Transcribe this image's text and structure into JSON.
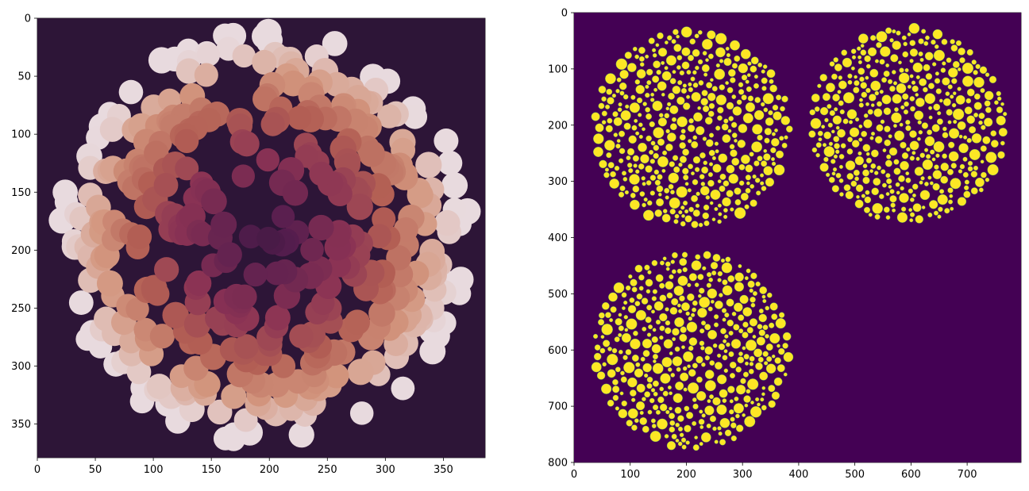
{
  "chart_data": [
    {
      "type": "heatmap",
      "title": "",
      "xlabel": "",
      "ylabel": "",
      "xlim": [
        0,
        386
      ],
      "ylim": [
        379,
        0
      ],
      "grid": false,
      "xticks": [
        0,
        50,
        100,
        150,
        200,
        250,
        300,
        350
      ],
      "yticks": [
        0,
        50,
        100,
        150,
        200,
        250,
        300,
        350
      ],
      "colormap": "rocket (dark center, light rim)",
      "background_color": "#2d1537",
      "content": "single circular cluster of overlapping discs",
      "cluster": {
        "center": [
          195,
          188
        ],
        "radius": 186
      }
    },
    {
      "type": "heatmap",
      "title": "",
      "xlabel": "",
      "ylabel": "",
      "xlim": [
        0,
        796
      ],
      "ylim": [
        800,
        0
      ],
      "grid": false,
      "xticks": [
        0,
        100,
        200,
        300,
        400,
        500,
        600,
        700
      ],
      "yticks": [
        0,
        100,
        200,
        300,
        400,
        500,
        600,
        700,
        800
      ],
      "colormap": "viridis (binary mask)",
      "background_color": "#440154",
      "foreground_color": "#fde725",
      "content": "three circular clusters of disjoint discs",
      "clusters": [
        {
          "center": [
            210,
            205
          ],
          "radius": 180
        },
        {
          "center": [
            595,
            200
          ],
          "radius": 180
        },
        {
          "center": [
            210,
            600
          ],
          "radius": 180
        }
      ]
    }
  ]
}
